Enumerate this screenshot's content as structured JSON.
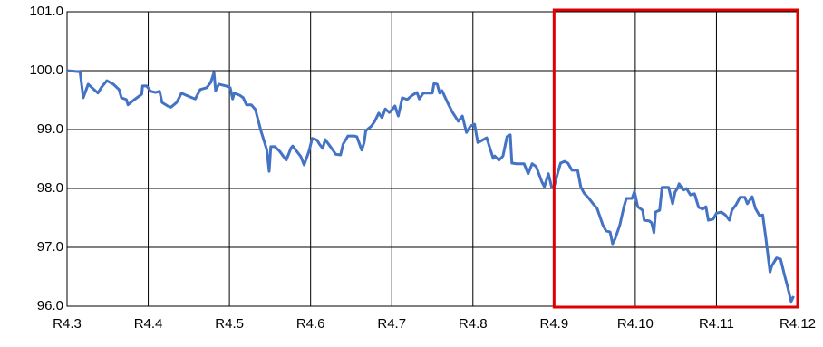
{
  "chart_data": {
    "type": "line",
    "series": [
      {
        "color": "#4472c4",
        "x": [
          3.0,
          3.16,
          3.2,
          3.26,
          3.38,
          3.42,
          3.49,
          3.57,
          3.64,
          3.67,
          3.73,
          3.75,
          3.83,
          3.92,
          3.93,
          3.98,
          4.03,
          4.09,
          4.14,
          4.17,
          4.24,
          4.28,
          4.35,
          4.41,
          4.47,
          4.54,
          4.58,
          4.64,
          4.72,
          4.77,
          4.81,
          4.83,
          4.87,
          4.96,
          5.01,
          5.04,
          5.06,
          5.13,
          5.17,
          5.21,
          5.27,
          5.32,
          5.39,
          5.46,
          5.49,
          5.51,
          5.56,
          5.62,
          5.7,
          5.76,
          5.78,
          5.88,
          5.92,
          5.98,
          6.02,
          6.08,
          6.11,
          6.15,
          6.18,
          6.26,
          6.31,
          6.37,
          6.4,
          6.46,
          6.54,
          6.57,
          6.63,
          6.66,
          6.68,
          6.75,
          6.79,
          6.84,
          6.88,
          6.92,
          6.97,
          7.01,
          7.04,
          7.08,
          7.13,
          7.19,
          7.25,
          7.31,
          7.34,
          7.39,
          7.44,
          7.5,
          7.52,
          7.56,
          7.59,
          7.62,
          7.69,
          7.75,
          7.82,
          7.87,
          7.92,
          7.97,
          8.02,
          8.06,
          8.09,
          8.17,
          8.21,
          8.25,
          8.27,
          8.32,
          8.37,
          8.42,
          8.46,
          8.48,
          8.54,
          8.63,
          8.68,
          8.73,
          8.78,
          8.85,
          8.88,
          8.93,
          8.97,
          9.0,
          9.05,
          9.08,
          9.13,
          9.17,
          9.22,
          9.29,
          9.33,
          9.37,
          9.43,
          9.48,
          9.53,
          9.56,
          9.6,
          9.64,
          9.69,
          9.72,
          9.75,
          9.81,
          9.86,
          9.89,
          9.96,
          9.99,
          10.03,
          10.09,
          10.11,
          10.17,
          10.2,
          10.23,
          10.25,
          10.3,
          10.33,
          10.41,
          10.46,
          10.49,
          10.52,
          10.54,
          10.59,
          10.63,
          10.68,
          10.73,
          10.78,
          10.83,
          10.87,
          10.9,
          10.96,
          11.0,
          11.06,
          11.11,
          11.16,
          11.19,
          11.24,
          11.29,
          11.35,
          11.38,
          11.44,
          11.48,
          11.53,
          11.57,
          11.61,
          11.64,
          11.66,
          11.68,
          11.74,
          11.79,
          11.84,
          11.88,
          11.92,
          11.95
        ],
        "values": [
          100.0,
          99.98,
          99.54,
          99.77,
          99.62,
          99.71,
          99.83,
          99.77,
          99.68,
          99.54,
          99.51,
          99.42,
          99.51,
          99.6,
          99.74,
          99.74,
          99.65,
          99.63,
          99.65,
          99.46,
          99.4,
          99.38,
          99.46,
          99.62,
          99.58,
          99.54,
          99.52,
          99.68,
          99.71,
          99.8,
          99.97,
          99.66,
          99.77,
          99.74,
          99.71,
          99.52,
          99.62,
          99.58,
          99.54,
          99.42,
          99.42,
          99.34,
          98.97,
          98.66,
          98.29,
          98.71,
          98.71,
          98.63,
          98.48,
          98.69,
          98.72,
          98.54,
          98.4,
          98.63,
          98.85,
          98.82,
          98.75,
          98.68,
          98.83,
          98.68,
          98.58,
          98.57,
          98.75,
          98.89,
          98.89,
          98.88,
          98.65,
          98.78,
          98.98,
          99.06,
          99.14,
          99.28,
          99.2,
          99.35,
          99.29,
          99.35,
          99.4,
          99.23,
          99.54,
          99.51,
          99.58,
          99.63,
          99.52,
          99.62,
          99.62,
          99.62,
          99.78,
          99.77,
          99.62,
          99.66,
          99.45,
          99.29,
          99.14,
          99.23,
          98.95,
          99.06,
          99.09,
          98.78,
          98.8,
          98.86,
          98.68,
          98.51,
          98.55,
          98.48,
          98.55,
          98.88,
          98.91,
          98.43,
          98.42,
          98.42,
          98.25,
          98.42,
          98.37,
          98.11,
          98.03,
          98.25,
          98.02,
          98.03,
          98.29,
          98.43,
          98.46,
          98.43,
          98.31,
          98.31,
          98.02,
          97.92,
          97.83,
          97.74,
          97.66,
          97.54,
          97.38,
          97.28,
          97.26,
          97.06,
          97.14,
          97.38,
          97.69,
          97.83,
          97.83,
          97.95,
          97.69,
          97.63,
          97.46,
          97.45,
          97.42,
          97.25,
          97.6,
          97.63,
          98.02,
          98.02,
          97.74,
          97.94,
          98.0,
          98.08,
          97.97,
          98.0,
          97.89,
          97.91,
          97.68,
          97.65,
          97.69,
          97.46,
          97.48,
          97.58,
          97.6,
          97.55,
          97.46,
          97.63,
          97.72,
          97.85,
          97.85,
          97.74,
          97.86,
          97.66,
          97.54,
          97.55,
          97.14,
          96.8,
          96.58,
          96.68,
          96.82,
          96.8,
          96.52,
          96.31,
          96.08,
          96.17
        ]
      }
    ],
    "xlim": [
      3,
      12
    ],
    "xticks": [
      {
        "value": 3,
        "label": "R4.3"
      },
      {
        "value": 4,
        "label": "R4.4"
      },
      {
        "value": 5,
        "label": "R4.5"
      },
      {
        "value": 6,
        "label": "R4.6"
      },
      {
        "value": 7,
        "label": "R4.7"
      },
      {
        "value": 8,
        "label": "R4.8"
      },
      {
        "value": 9,
        "label": "R4.9"
      },
      {
        "value": 10,
        "label": "R4.10"
      },
      {
        "value": 11,
        "label": "R4.11"
      },
      {
        "value": 12,
        "label": "R4.12"
      }
    ],
    "ylim": [
      96,
      101
    ],
    "yticks": [
      {
        "value": 96,
        "label": "96.0"
      },
      {
        "value": 97,
        "label": "97.0"
      },
      {
        "value": 98,
        "label": "98.0"
      },
      {
        "value": 99,
        "label": "99.0"
      },
      {
        "value": 100,
        "label": "100.0"
      },
      {
        "value": 101,
        "label": "101.0"
      }
    ],
    "grid": true,
    "highlight": {
      "x": [
        9,
        12
      ],
      "color": "#e00000"
    }
  }
}
